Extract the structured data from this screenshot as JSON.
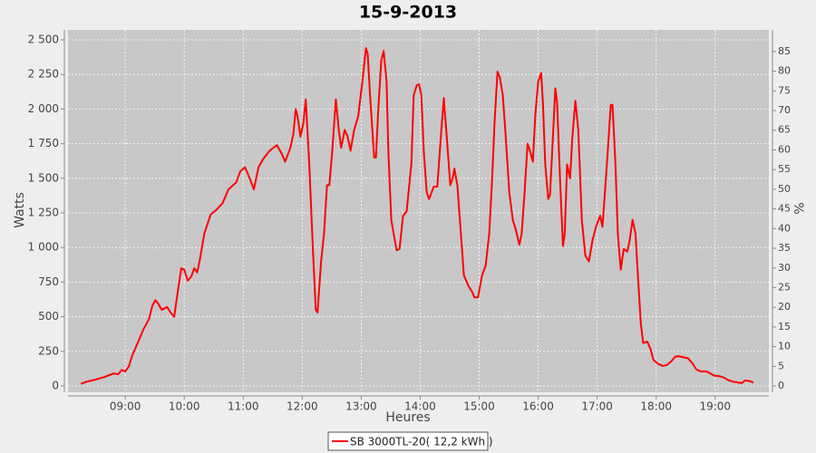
{
  "chart_data": {
    "type": "line",
    "title": "15-9-2013",
    "x_label": "Heures",
    "y_label": "Watts",
    "y2_label": "%",
    "x": [
      8.25,
      8.34,
      8.49,
      8.65,
      8.8,
      8.88,
      8.94,
      9.0,
      9.06,
      9.12,
      9.22,
      9.31,
      9.4,
      9.46,
      9.51,
      9.55,
      9.62,
      9.71,
      9.77,
      9.83,
      9.89,
      9.95,
      10.0,
      10.06,
      10.12,
      10.17,
      10.22,
      10.26,
      10.34,
      10.45,
      10.54,
      10.65,
      10.75,
      10.88,
      10.95,
      11.03,
      11.11,
      11.18,
      11.26,
      11.34,
      11.45,
      11.57,
      11.65,
      11.71,
      11.8,
      11.85,
      11.89,
      11.92,
      11.97,
      12.02,
      12.06,
      12.12,
      12.18,
      12.23,
      12.26,
      12.32,
      12.37,
      12.42,
      12.46,
      12.51,
      12.57,
      12.62,
      12.66,
      12.72,
      12.77,
      12.82,
      12.88,
      12.95,
      13.02,
      13.08,
      13.11,
      13.15,
      13.22,
      13.25,
      13.29,
      13.34,
      13.38,
      13.43,
      13.46,
      13.51,
      13.55,
      13.6,
      13.65,
      13.71,
      13.77,
      13.85,
      13.89,
      13.94,
      13.98,
      14.02,
      14.06,
      14.11,
      14.15,
      14.23,
      14.29,
      14.35,
      14.4,
      14.45,
      14.51,
      14.55,
      14.58,
      14.63,
      14.69,
      14.74,
      14.82,
      14.88,
      14.92,
      14.98,
      15.05,
      15.11,
      15.17,
      15.22,
      15.26,
      15.31,
      15.35,
      15.4,
      15.45,
      15.51,
      15.57,
      15.62,
      15.68,
      15.72,
      15.77,
      15.82,
      15.86,
      15.91,
      15.95,
      16.0,
      16.05,
      16.08,
      16.12,
      16.17,
      16.2,
      16.25,
      16.29,
      16.32,
      16.37,
      16.42,
      16.45,
      16.49,
      16.54,
      16.58,
      16.63,
      16.68,
      16.74,
      16.8,
      16.86,
      16.92,
      16.98,
      17.05,
      17.09,
      17.14,
      17.18,
      17.23,
      17.26,
      17.31,
      17.35,
      17.4,
      17.45,
      17.51,
      17.55,
      17.6,
      17.65,
      17.69,
      17.74,
      17.78,
      17.85,
      17.91,
      17.95,
      18.03,
      18.11,
      18.18,
      18.26,
      18.32,
      18.37,
      18.43,
      18.48,
      18.54,
      18.62,
      18.68,
      18.75,
      18.85,
      18.92,
      18.98,
      19.08,
      19.15,
      19.23,
      19.31,
      19.38,
      19.45,
      19.51,
      19.58,
      19.65
    ],
    "series": [
      {
        "name": "SB 3000TL-20( 12,2 kWh )",
        "color": "#ff0000",
        "values": [
          15,
          30,
          45,
          65,
          90,
          85,
          115,
          105,
          140,
          220,
          320,
          410,
          480,
          580,
          620,
          600,
          550,
          570,
          530,
          500,
          680,
          850,
          840,
          760,
          790,
          850,
          820,
          900,
          1100,
          1240,
          1270,
          1320,
          1420,
          1470,
          1550,
          1580,
          1500,
          1420,
          1580,
          1640,
          1700,
          1740,
          1680,
          1620,
          1720,
          1820,
          2000,
          1950,
          1800,
          1900,
          2070,
          1600,
          1000,
          550,
          530,
          900,
          1100,
          1450,
          1450,
          1700,
          2070,
          1850,
          1720,
          1850,
          1800,
          1700,
          1850,
          1950,
          2200,
          2440,
          2400,
          2100,
          1650,
          1650,
          2000,
          2350,
          2420,
          2200,
          1700,
          1200,
          1100,
          980,
          990,
          1230,
          1260,
          1600,
          2100,
          2170,
          2180,
          2100,
          1700,
          1400,
          1350,
          1440,
          1440,
          1800,
          2080,
          1800,
          1450,
          1500,
          1570,
          1450,
          1100,
          800,
          720,
          680,
          640,
          640,
          800,
          870,
          1100,
          1500,
          1900,
          2270,
          2230,
          2100,
          1800,
          1400,
          1200,
          1130,
          1020,
          1100,
          1400,
          1750,
          1700,
          1620,
          1950,
          2200,
          2260,
          2050,
          1600,
          1350,
          1380,
          1800,
          2150,
          2050,
          1500,
          1010,
          1100,
          1600,
          1500,
          1800,
          2060,
          1850,
          1200,
          940,
          900,
          1050,
          1150,
          1230,
          1150,
          1450,
          1700,
          2030,
          2030,
          1600,
          1100,
          840,
          990,
          970,
          1050,
          1200,
          1100,
          800,
          450,
          310,
          320,
          260,
          190,
          160,
          145,
          150,
          180,
          210,
          215,
          210,
          205,
          200,
          160,
          120,
          105,
          105,
          90,
          75,
          70,
          60,
          40,
          30,
          25,
          20,
          40,
          35,
          25
        ]
      }
    ],
    "xlim": [
      8.03,
      19.91
    ],
    "xticks": [
      {
        "value": 9,
        "label": "09:00"
      },
      {
        "value": 10,
        "label": "10:00"
      },
      {
        "value": 11,
        "label": "11:00"
      },
      {
        "value": 12,
        "label": "12:00"
      },
      {
        "value": 13,
        "label": "13:00"
      },
      {
        "value": 14,
        "label": "14:00"
      },
      {
        "value": 15,
        "label": "15:00"
      },
      {
        "value": 16,
        "label": "16:00"
      },
      {
        "value": 17,
        "label": "17:00"
      },
      {
        "value": 18,
        "label": "18:00"
      },
      {
        "value": 19,
        "label": "19:00"
      }
    ],
    "ylim": [
      -46,
      2572
    ],
    "yticks": [
      0,
      250,
      500,
      750,
      {
        "value": 1000,
        "label": "1 000"
      },
      {
        "value": 1250,
        "label": "1 250"
      },
      {
        "value": 1500,
        "label": "1 500"
      },
      {
        "value": 1750,
        "label": "1 750"
      },
      {
        "value": 2000,
        "label": "2 000"
      },
      {
        "value": 2250,
        "label": "2 250"
      },
      {
        "value": 2500,
        "label": "2 500"
      }
    ],
    "y2lim": [
      -1.6,
      90.5
    ],
    "y2ticks": [
      0,
      5,
      10,
      15,
      20,
      25,
      30,
      35,
      40,
      45,
      50,
      55,
      60,
      65,
      70,
      75,
      80,
      85
    ],
    "grid": true
  }
}
